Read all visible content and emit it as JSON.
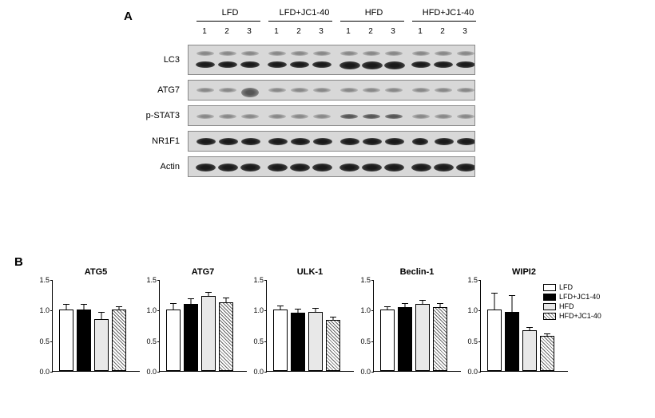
{
  "panelA": {
    "label": "A",
    "groups": [
      "LFD",
      "LFD+JC1-40",
      "HFD",
      "HFD+JC1-40"
    ],
    "lanes_per_group": [
      1,
      2,
      3
    ],
    "proteins": [
      "LC3",
      "ATG7",
      "p-STAT3",
      "NR1F1",
      "Actin"
    ],
    "blot_bg": "#d8d8d8",
    "border_color": "#888888"
  },
  "panelB": {
    "label": "B",
    "charts": [
      {
        "title": "ATG5",
        "ylim": [
          0,
          1.5
        ],
        "ytick_step": 0.5,
        "values": [
          1.0,
          1.0,
          0.85,
          1.0
        ],
        "errors": [
          0.08,
          0.08,
          0.1,
          0.05
        ]
      },
      {
        "title": "ATG7",
        "ylim": [
          0,
          1.5
        ],
        "ytick_step": 0.5,
        "values": [
          1.0,
          1.1,
          1.22,
          1.12
        ],
        "errors": [
          0.1,
          0.08,
          0.06,
          0.07
        ]
      },
      {
        "title": "ULK-1",
        "ylim": [
          0,
          1.5
        ],
        "ytick_step": 0.5,
        "values": [
          1.0,
          0.95,
          0.97,
          0.83
        ],
        "errors": [
          0.06,
          0.05,
          0.05,
          0.04
        ]
      },
      {
        "title": "Beclin-1",
        "ylim": [
          0,
          1.5
        ],
        "ytick_step": 0.5,
        "values": [
          1.0,
          1.04,
          1.1,
          1.05
        ],
        "errors": [
          0.05,
          0.06,
          0.05,
          0.05
        ]
      },
      {
        "title": "WIPI2",
        "ylim": [
          0,
          1.5
        ],
        "ytick_step": 0.5,
        "values": [
          1.0,
          0.97,
          0.66,
          0.57
        ],
        "errors": [
          0.27,
          0.25,
          0.05,
          0.03
        ]
      }
    ],
    "bar_fills": [
      "white",
      "black",
      "lightgray",
      "hatch"
    ],
    "bar_colors_hex": [
      "#ffffff",
      "#000000",
      "#e8e8e8",
      "#cccccc"
    ],
    "legend_labels": [
      "LFD",
      "LFD+JC1-40",
      "HFD",
      "HFD+JC1-40"
    ]
  },
  "style": {
    "font_family": "Arial",
    "label_fontsize": 15,
    "header_fontsize": 11,
    "axis_fontsize": 9,
    "chart_title_fontsize": 11,
    "background": "#ffffff"
  }
}
